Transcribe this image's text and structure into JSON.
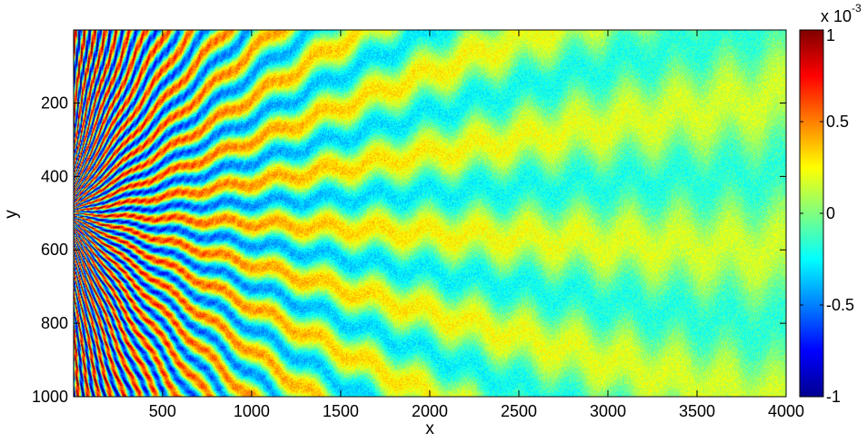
{
  "chart_data": {
    "type": "heatmap",
    "xlabel": "x",
    "ylabel": "y",
    "xlim": [
      1,
      4000
    ],
    "ylim": [
      1,
      1000
    ],
    "y_reversed": true,
    "x_ticks": [
      "500",
      "1000",
      "1500",
      "2000",
      "2500",
      "3000",
      "3500",
      "4000"
    ],
    "x_tick_values": [
      500,
      1000,
      1500,
      2000,
      2500,
      3000,
      3500,
      4000
    ],
    "y_ticks": [
      "200",
      "400",
      "600",
      "800",
      "1000"
    ],
    "y_tick_values": [
      200,
      400,
      600,
      800,
      1000
    ],
    "colormap": "jet",
    "colorbar": {
      "clim": [
        -1,
        1
      ],
      "ticks": [
        "-1",
        "-0.5",
        "0",
        "0.5",
        "1"
      ],
      "tick_values": [
        -1,
        -0.5,
        0,
        0.5,
        1
      ],
      "exponent_label_base": "x 10",
      "exponent_label_power": "-3",
      "location": "right"
    },
    "pattern": {
      "description_source": "interference fringes radiating from source at left edge",
      "source_y": 500,
      "num_rays": 60,
      "amplitude_near_source": 1,
      "amplitude_far_field": 0.2
    },
    "grid": false
  }
}
